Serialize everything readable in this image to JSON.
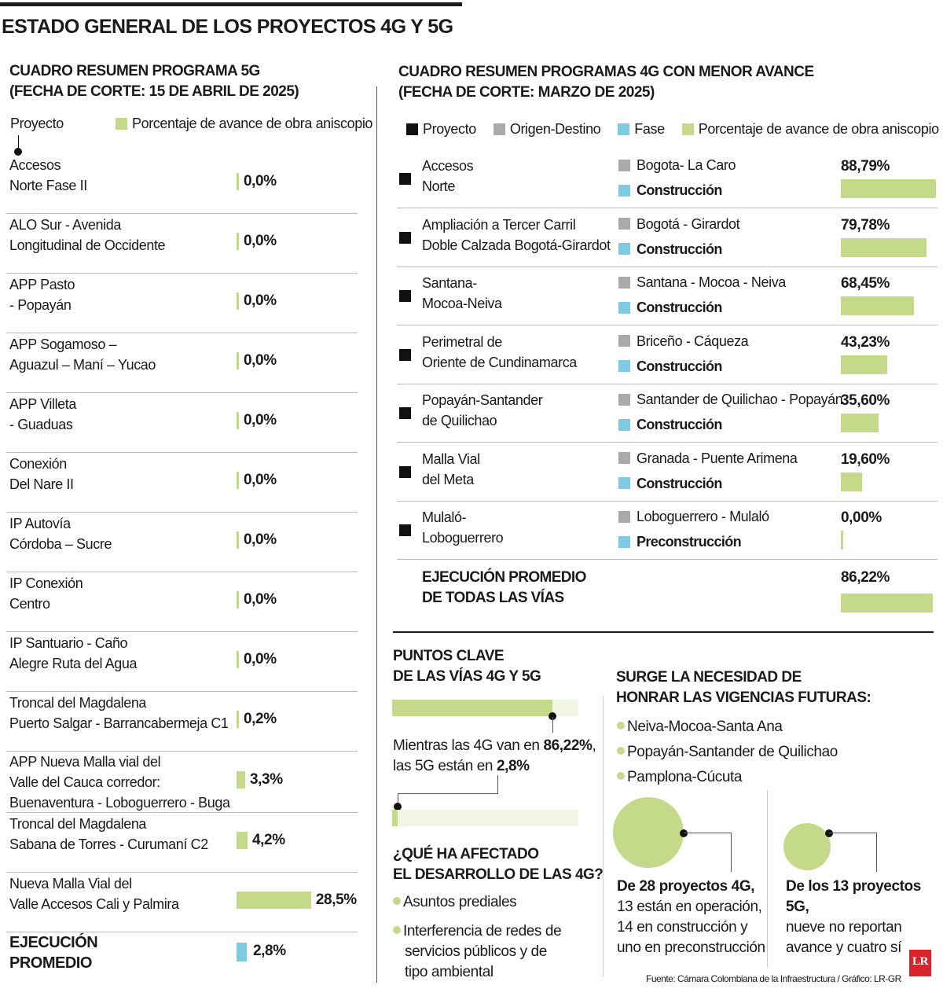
{
  "title": "ESTADO GENERAL DE LOS PROYECTOS 4G Y 5G",
  "colors": {
    "green": "#c5d98a",
    "blue": "#7ccbe3",
    "gray": "#aaaaaa",
    "black": "#111111",
    "light_green": "#f1f5e4"
  },
  "left": {
    "heading": [
      "CUADRO RESUMEN PROGRAMA 5G",
      "(FECHA DE CORTE: 15 DE ABRIL DE 2025)"
    ],
    "legend_project": "Proyecto",
    "legend_pct": "Porcentaje de avance de obra aniscopio",
    "average_label": [
      "EJECUCIÓN",
      "PROMEDIO"
    ],
    "average_value": "2,8%"
  },
  "right": {
    "heading": [
      "CUADRO RESUMEN PROGRAMAS 4G CON MENOR AVANCE",
      "(FECHA DE CORTE: MARZO DE 2025)"
    ],
    "legend": [
      "Proyecto",
      "Origen-Destino",
      "Fase",
      "Porcentaje de avance de obra aniscopio"
    ],
    "average_label": [
      "EJECUCIÓN PROMEDIO",
      "DE TODAS LAS VÍAS"
    ],
    "average_value": "86,22%"
  },
  "key_points": {
    "heading": [
      "PUNTOS CLAVE",
      "DE LAS VÍAS 4G Y 5G"
    ],
    "line1_pre": "Mientras las 4G van en ",
    "line1_bold": "86,22%",
    "line1_post": ",",
    "line2_pre": "las 5G están en ",
    "line2_bold": "2,8%",
    "affected_heading": [
      "¿QUÉ HA AFECTADO",
      "EL DESARROLLO DE LAS 4G?"
    ],
    "affected_items": [
      "Asuntos prediales",
      "Interferencia de redes de",
      "servicios públicos y de",
      "tipo ambiental"
    ]
  },
  "futures": {
    "heading": [
      "SURGE LA NECESIDAD DE",
      "HONRAR LAS VIGENCIAS FUTURAS:"
    ],
    "items": [
      "Neiva-Mocoa-Santa Ana",
      "Popayán-Santander de Quilichao",
      "Pamplona-Cúcuta"
    ],
    "stat4g": {
      "bold": "De 28 proyectos 4G,",
      "lines": [
        "13 están en operación,",
        "14 en construcción y",
        "uno en preconstrucción"
      ]
    },
    "stat5g": {
      "bold": "De los 13 proyectos 5G,",
      "lines": [
        "nueve no reportan",
        "avance y cuatro sí"
      ]
    }
  },
  "source": "Fuente: Cámara Colombiana de la Infraestructura / Gráfico: LR-GR",
  "logo": "LR",
  "chart_data": [
    {
      "type": "bar",
      "title": "CUADRO RESUMEN PROGRAMA 5G",
      "series_name": "Porcentaje de avance de obra aniscopio",
      "categories": [
        [
          "Accesos",
          "Norte Fase II"
        ],
        [
          "ALO Sur - Avenida",
          "Longitudinal de Occidente"
        ],
        [
          "APP Pasto",
          "- Popayán"
        ],
        [
          "APP Sogamoso –",
          "Aguazul – Maní – Yucao"
        ],
        [
          "APP Villeta",
          "- Guaduas"
        ],
        [
          "Conexión",
          "Del Nare II"
        ],
        [
          "IP Autovía",
          "Córdoba – Sucre"
        ],
        [
          "IP Conexión",
          "Centro"
        ],
        [
          "IP Santuario - Caño",
          "Alegre Ruta del Agua"
        ],
        [
          "Troncal del Magdalena",
          "Puerto Salgar - Barrancabermeja C1"
        ],
        [
          "APP Nueva Malla vial del",
          "Valle del Cauca corredor:",
          "Buenaventura - Loboguerrero - Buga"
        ],
        [
          "Troncal del Magdalena",
          "Sabana de Torres - Curumaní C2"
        ],
        [
          "Nueva Malla Vial del",
          "Valle Accesos Cali y Palmira"
        ]
      ],
      "values": [
        0,
        0,
        0,
        0,
        0,
        0,
        0,
        0,
        0,
        0.2,
        3.3,
        4.2,
        28.5
      ],
      "labels": [
        "0,0%",
        "0,0%",
        "0,0%",
        "0,0%",
        "0,0%",
        "0,0%",
        "0,0%",
        "0,0%",
        "0,0%",
        "0,2%",
        "3,3%",
        "4,2%",
        "28,5%"
      ],
      "average": 2.8
    },
    {
      "type": "bar",
      "title": "CUADRO RESUMEN PROGRAMAS 4G CON MENOR AVANCE",
      "rows": [
        {
          "name": [
            "Accesos",
            "Norte"
          ],
          "od": "Bogota- La Caro",
          "fase": "Construcción",
          "value": 88.79,
          "label": "88,79%"
        },
        {
          "name": [
            "Ampliación a Tercer Carril",
            "Doble Calzada Bogotá-Girardot"
          ],
          "od": "Bogotá - Girardot",
          "fase": "Construcción",
          "value": 79.78,
          "label": "79,78%"
        },
        {
          "name": [
            "Santana-",
            "Mocoa-Neiva"
          ],
          "od": "Santana - Mocoa - Neiva",
          "fase": "Construcción",
          "value": 68.45,
          "label": "68,45%"
        },
        {
          "name": [
            "Perimetral de",
            "Oriente de Cundinamarca"
          ],
          "od": "Briceño - Cáqueza",
          "fase": "Construcción",
          "value": 43.23,
          "label": "43,23%"
        },
        {
          "name": [
            "Popayán-Santander",
            "de Quilichao"
          ],
          "od": "Santander de Quilichao - Popayán",
          "fase": "Construcción",
          "value": 35.6,
          "label": "35,60%"
        },
        {
          "name": [
            "Malla Vial",
            "del Meta"
          ],
          "od": "Granada - Puente Arimena",
          "fase": "Construcción",
          "value": 19.6,
          "label": "19,60%"
        },
        {
          "name": [
            "Mulaló-",
            "Loboguerrero"
          ],
          "od": "Loboguerrero - Mulaló",
          "fase": "Preconstrucción",
          "value": 0,
          "label": "0,00%"
        }
      ],
      "average": 86.22
    },
    {
      "type": "bar",
      "title": "PUNTOS CLAVE",
      "categories": [
        "4G",
        "5G"
      ],
      "values": [
        86.22,
        2.8
      ]
    }
  ]
}
